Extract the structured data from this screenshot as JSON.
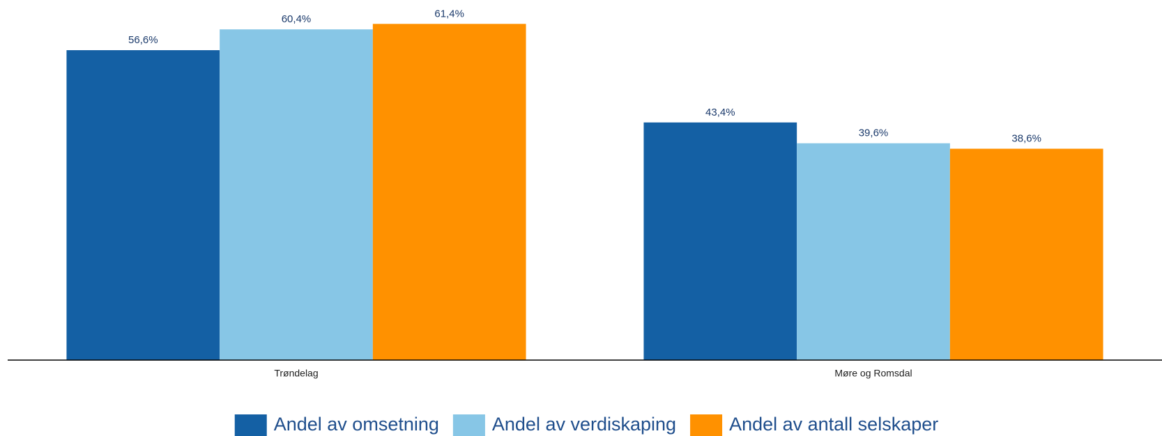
{
  "chart_data": {
    "type": "bar",
    "categories": [
      "Trøndelag",
      "Møre og Romsdal"
    ],
    "series": [
      {
        "name": "Andel av omsetning",
        "color": "#1460a4",
        "values": [
          56.6,
          43.4
        ],
        "value_labels": [
          "56,6%",
          "43,4%"
        ]
      },
      {
        "name": "Andel av verdiskaping",
        "color": "#87c6e6",
        "values": [
          60.4,
          39.6
        ],
        "value_labels": [
          "60,4%",
          "39,6%"
        ]
      },
      {
        "name": "Andel av antall selskaper",
        "color": "#ff9100",
        "values": [
          61.4,
          38.6
        ],
        "value_labels": [
          "61,4%",
          "38,6%"
        ]
      }
    ],
    "ylim": [
      0,
      65
    ],
    "legend": "bottom"
  }
}
